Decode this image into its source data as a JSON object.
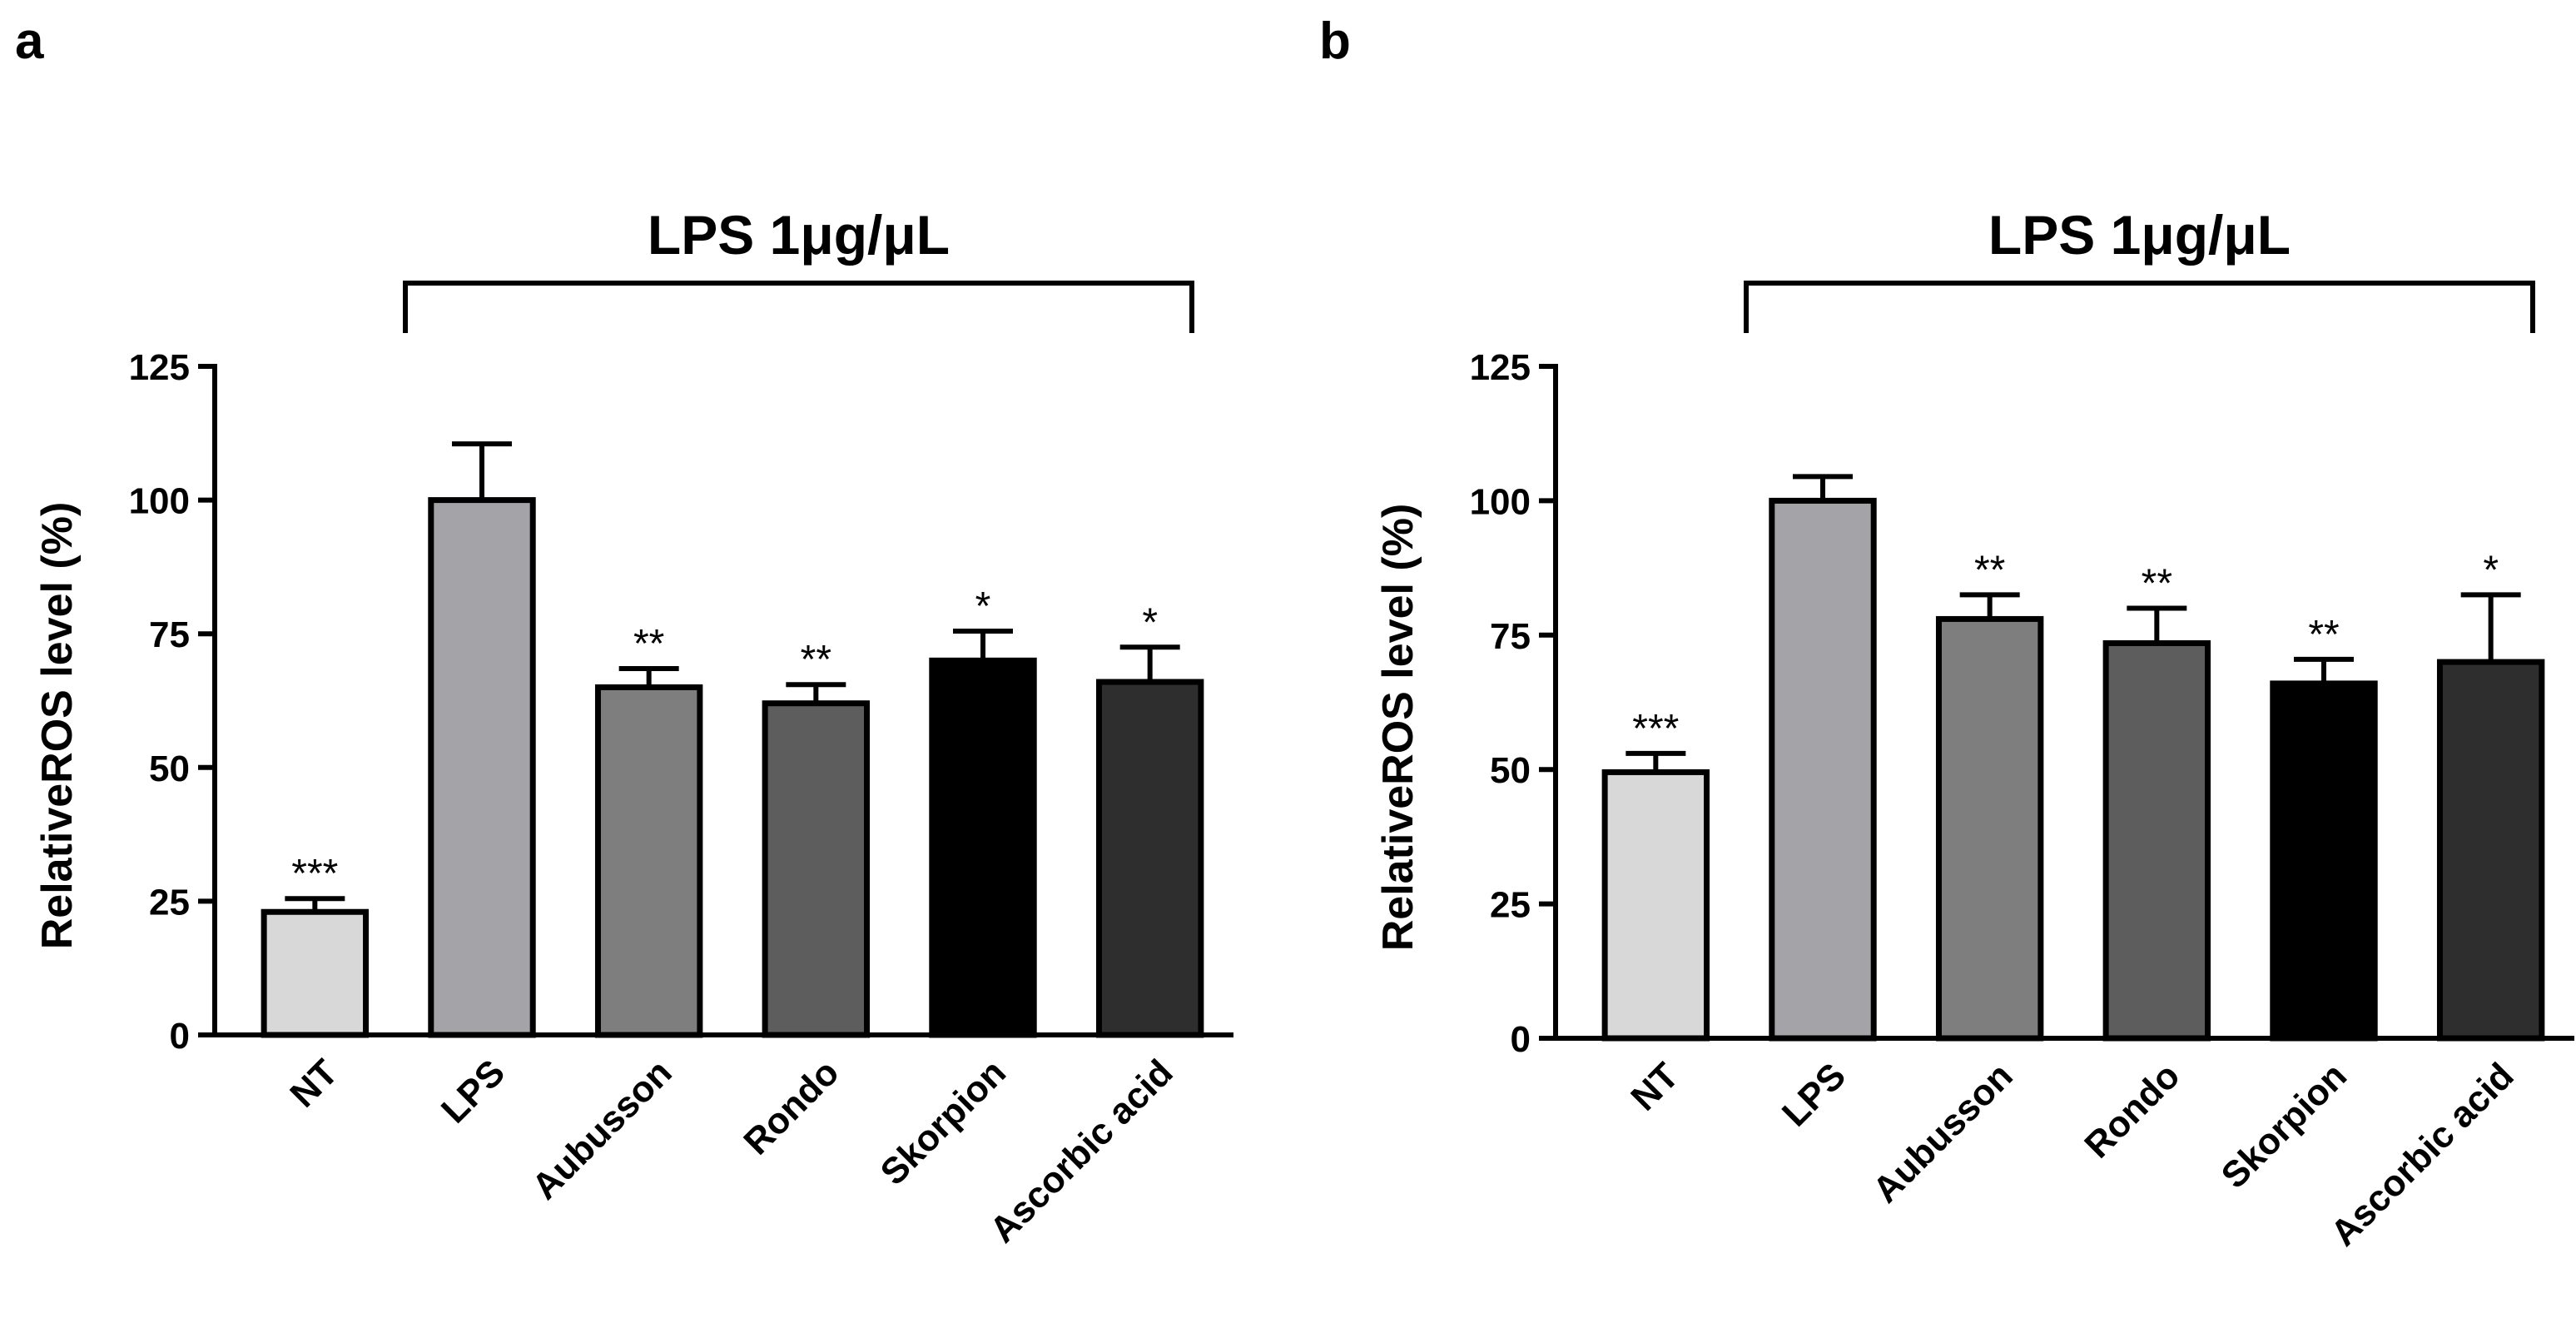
{
  "chart_data": [
    {
      "type": "bar",
      "panel": "a",
      "categories": [
        "NT",
        "LPS",
        "Aubusson",
        "Rondo",
        "Skorpion",
        "Ascorbic acid"
      ],
      "values": [
        23,
        100,
        65,
        62,
        70,
        66
      ],
      "errors": [
        2.5,
        10.5,
        3.5,
        3.5,
        5.5,
        6.5
      ],
      "significance": [
        "***",
        "",
        "**",
        "**",
        "*",
        "*"
      ],
      "colors": [
        "#d8d8d8",
        "#a3a3a8",
        "#7e7e7e",
        "#5d5d5d",
        "#000000",
        "#2e2e2e"
      ],
      "ylabel": "RelativeROS level (%)",
      "ylim": [
        0,
        125
      ],
      "yticks": [
        0,
        25,
        50,
        75,
        100,
        125
      ],
      "bracket_label": "LPS 1μg/μL"
    },
    {
      "type": "bar",
      "panel": "b",
      "categories": [
        "NT",
        "LPS",
        "Aubusson",
        "Rondo",
        "Skorpion",
        "Ascorbic acid"
      ],
      "values": [
        49.5,
        100,
        78,
        73.5,
        66,
        70
      ],
      "errors": [
        3.5,
        4.5,
        4.5,
        6.5,
        4.5,
        12.5
      ],
      "significance": [
        "***",
        "",
        "**",
        "**",
        "**",
        "*"
      ],
      "colors": [
        "#d8d8d8",
        "#a3a3a8",
        "#7e7e7e",
        "#5d5d5d",
        "#000000",
        "#2e2e2e"
      ],
      "ylabel": "RelativeROS level (%)",
      "ylim": [
        0,
        125
      ],
      "yticks": [
        0,
        25,
        50,
        75,
        100,
        125
      ],
      "bracket_label": "LPS 1μg/μL"
    }
  ]
}
